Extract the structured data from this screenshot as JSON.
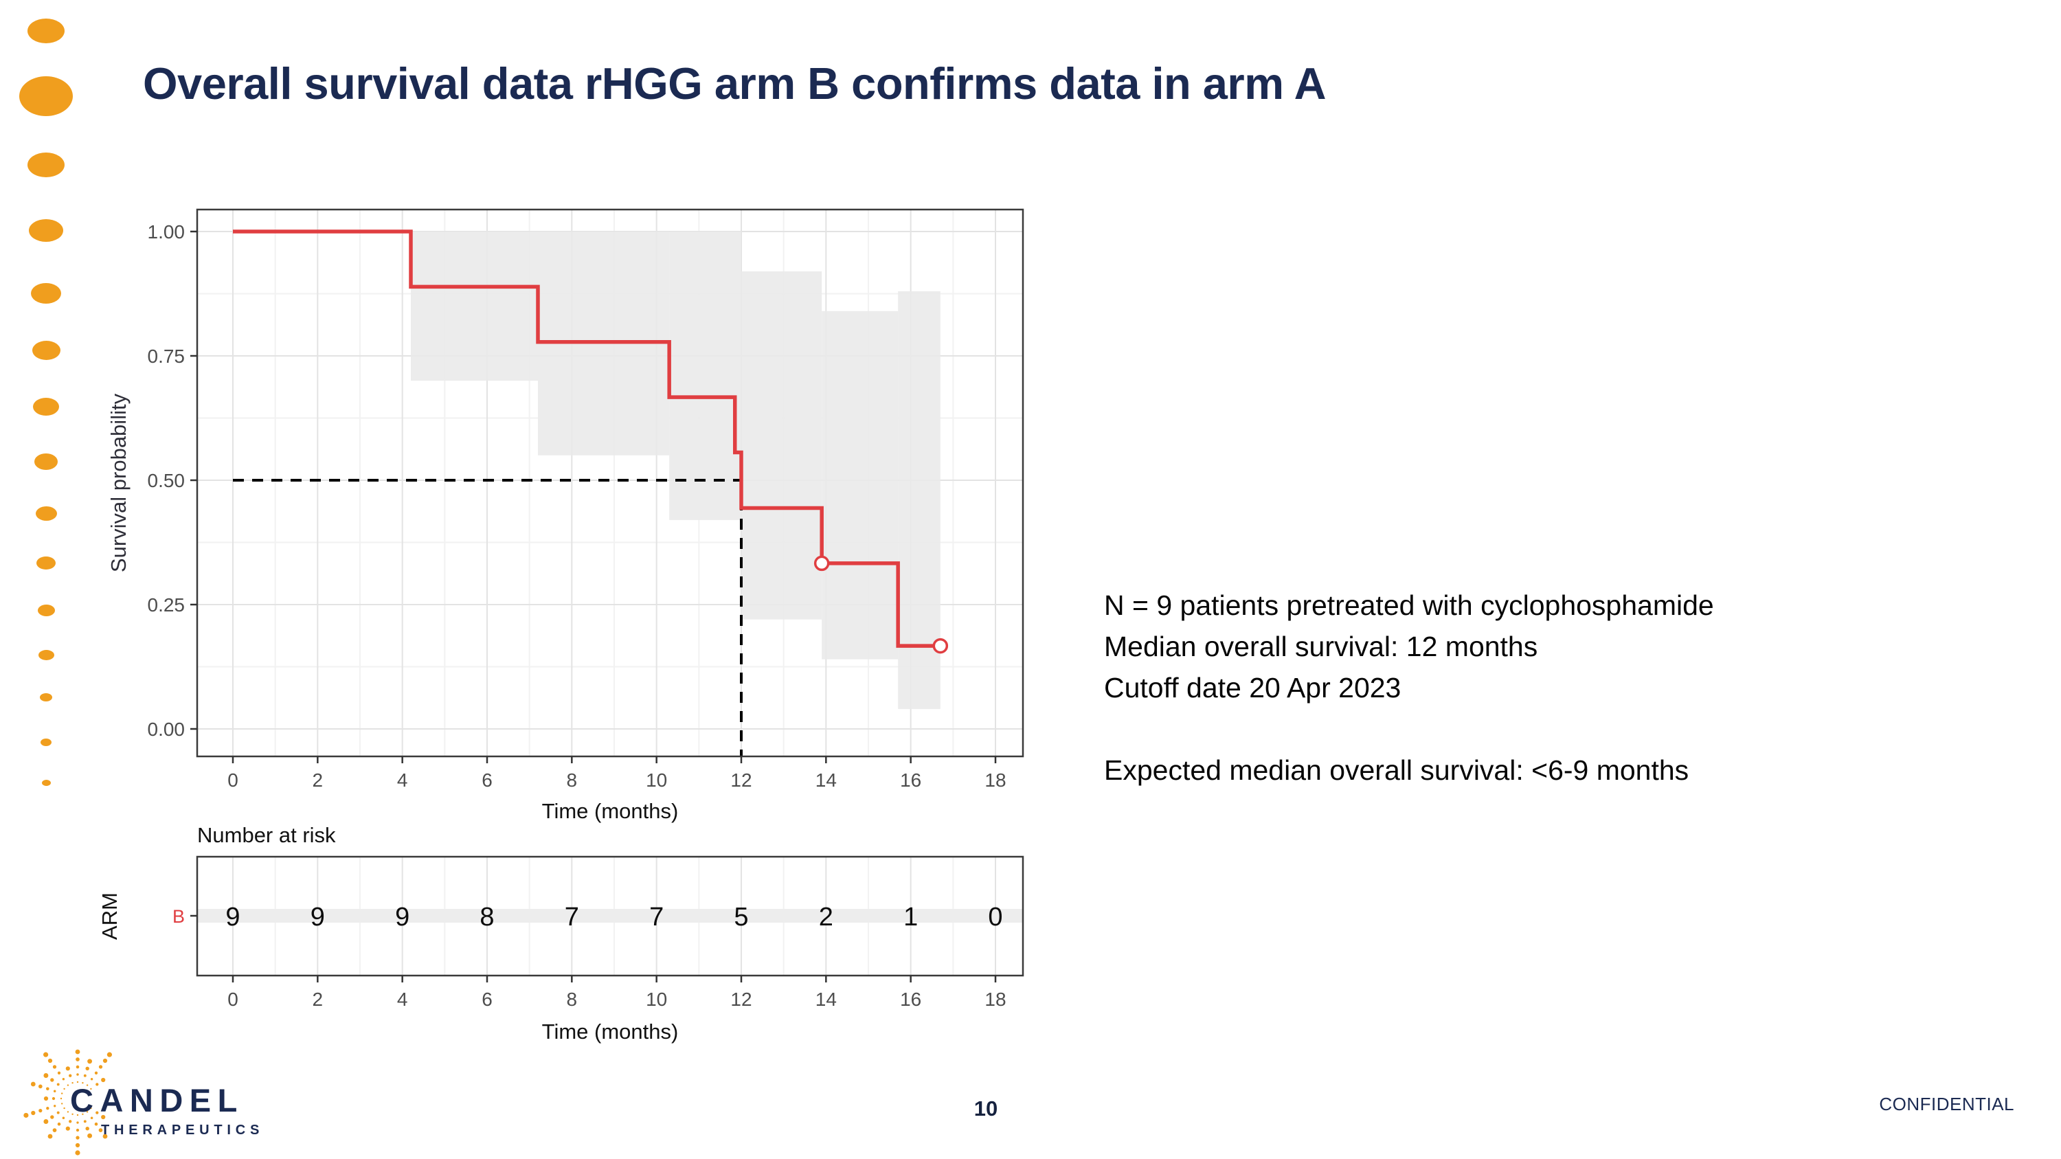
{
  "slide": {
    "title": "Overall survival data rHGG arm B confirms data in arm A",
    "page_number": "10",
    "confidential_label": "CONFIDENTIAL"
  },
  "annotations": {
    "line1": "N = 9 patients pretreated with cyclophosphamide",
    "line2": "Median overall survival: 12 months",
    "line3": "Cutoff date 20 Apr 2023",
    "line4": "Expected median overall survival: <6-9 months"
  },
  "logo": {
    "name": "CANDEL",
    "subtitle": "THERAPEUTICS"
  },
  "colors": {
    "accent_orange": "#F09E1E",
    "curve_red": "#E03E41",
    "title_navy": "#1B2A52",
    "ci_fill": "#E9E9E9",
    "grid_major": "#E3E3E3",
    "grid_minor": "#F2F2F2",
    "panel_border": "#3A3A3A",
    "tick_text": "#4D4D4D",
    "axis_text": "#111111",
    "reference_dash": "#000000"
  },
  "chart_data": {
    "type": "line",
    "subtype": "kaplan-meier-step",
    "title": "",
    "xlabel": "Time (months)",
    "ylabel": "Survival probability",
    "xlim": [
      0,
      18
    ],
    "ylim": [
      0,
      1
    ],
    "grid": true,
    "xticks": [
      0,
      2,
      4,
      6,
      8,
      10,
      12,
      14,
      16,
      18
    ],
    "ytick_values": [
      0,
      0.25,
      0.5,
      0.75,
      1
    ],
    "ytick_labels": [
      "0.00",
      "0.25",
      "0.50",
      "0.75",
      "1.00"
    ],
    "series": [
      {
        "name": "ARM B",
        "n": 9,
        "km_points": [
          [
            0,
            1.0
          ],
          [
            4.2,
            1.0
          ],
          [
            4.2,
            0.889
          ],
          [
            7.2,
            0.889
          ],
          [
            7.2,
            0.778
          ],
          [
            10.3,
            0.778
          ],
          [
            10.3,
            0.667
          ],
          [
            11.85,
            0.667
          ],
          [
            11.85,
            0.556
          ],
          [
            12.0,
            0.556
          ],
          [
            12.0,
            0.444
          ],
          [
            13.9,
            0.444
          ],
          [
            13.9,
            0.333
          ],
          [
            15.7,
            0.333
          ],
          [
            15.7,
            0.167
          ],
          [
            16.7,
            0.167
          ]
        ],
        "censor_points": [
          [
            13.9,
            0.333
          ],
          [
            16.7,
            0.167
          ]
        ],
        "ci_band": [
          {
            "x0": 4.2,
            "x1": 7.2,
            "upper": 1.0,
            "lower": 0.7
          },
          {
            "x0": 7.2,
            "x1": 10.3,
            "upper": 1.0,
            "lower": 0.55
          },
          {
            "x0": 10.3,
            "x1": 12.0,
            "upper": 1.0,
            "lower": 0.42
          },
          {
            "x0": 12.0,
            "x1": 13.9,
            "upper": 0.92,
            "lower": 0.22
          },
          {
            "x0": 13.9,
            "x1": 15.7,
            "upper": 0.84,
            "lower": 0.14
          },
          {
            "x0": 15.7,
            "x1": 16.7,
            "upper": 0.88,
            "lower": 0.04
          }
        ]
      }
    ],
    "median_reference": {
      "time": 12,
      "probability": 0.5
    },
    "risk_table": {
      "heading": "Number at risk",
      "axis_label": "ARM",
      "group_label": "B",
      "times": [
        0,
        2,
        4,
        6,
        8,
        10,
        12,
        14,
        16,
        18
      ],
      "counts": [
        9,
        9,
        9,
        8,
        7,
        7,
        5,
        2,
        1,
        0
      ],
      "xlabel": "Time (months)"
    }
  }
}
